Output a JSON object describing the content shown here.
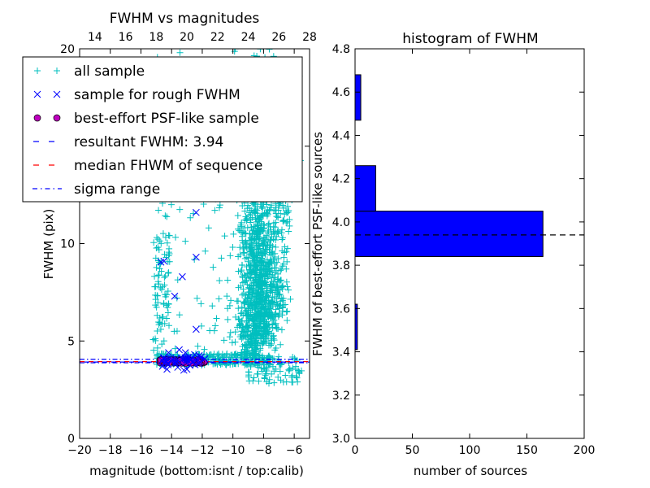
{
  "chart_data": [
    {
      "type": "scatter",
      "title": "FWHM vs magnitudes",
      "xlabel": "magnitude (bottom:isnt / top:calib)",
      "ylabel": "FWHM (pix)",
      "xlim": [
        -20,
        -5
      ],
      "ylim": [
        0,
        20
      ],
      "x_ticks": [
        -20,
        -18,
        -16,
        -14,
        -12,
        -10,
        -8,
        -6
      ],
      "x_tick_labels": [
        "−20",
        "−18",
        "−16",
        "−14",
        "−12",
        "−10",
        "−8",
        "−6"
      ],
      "y_ticks": [
        0,
        5,
        10,
        15,
        20
      ],
      "y_tick_labels": [
        "0",
        "5",
        "10",
        "15",
        "20"
      ],
      "top_xlim": [
        13,
        28
      ],
      "top_x_ticks": [
        14,
        16,
        18,
        20,
        22,
        24,
        26,
        28
      ],
      "top_x_tick_labels": [
        "14",
        "16",
        "18",
        "20",
        "22",
        "24",
        "26",
        "28"
      ],
      "legend_position": "upper-left",
      "legend": [
        {
          "label": "all sample",
          "marker": "plus",
          "color": "#00bfbf"
        },
        {
          "label": "sample for rough FWHM",
          "marker": "x",
          "color": "#0000ff"
        },
        {
          "label": "best-effort PSF-like sample",
          "marker": "circle",
          "color": "#bf00bf"
        },
        {
          "label": "resultant FWHM: 3.94",
          "marker": "dash",
          "color": "#0000ff"
        },
        {
          "label": "median FHWM of sequence",
          "marker": "dash",
          "color": "#ff0000"
        },
        {
          "label": "sigma range",
          "marker": "dashdot",
          "color": "#0000ff"
        }
      ],
      "resultant_fwhm": 3.94,
      "median_fwhm": 3.94,
      "sigma_range": [
        3.88,
        4.06
      ],
      "rough_sample": [
        {
          "x": -14.7,
          "y": 9.05
        },
        {
          "x": -14.5,
          "y": 9.1
        },
        {
          "x": -12.4,
          "y": 11.6
        },
        {
          "x": -12.4,
          "y": 9.3
        },
        {
          "x": -13.3,
          "y": 8.3
        },
        {
          "x": -13.8,
          "y": 7.3
        },
        {
          "x": -12.4,
          "y": 5.6
        },
        {
          "x": -13.1,
          "y": 4.4
        },
        {
          "x": -13.5,
          "y": 4.55
        },
        {
          "x": -14.2,
          "y": 4.4
        },
        {
          "x": -12.2,
          "y": 4.25
        },
        {
          "x": -12.5,
          "y": 4.3
        },
        {
          "x": -14.3,
          "y": 3.55
        },
        {
          "x": -13.2,
          "y": 3.5
        },
        {
          "x": -13.0,
          "y": 3.55
        },
        {
          "x": -12.8,
          "y": 3.75
        },
        {
          "x": -14.6,
          "y": 3.7
        },
        {
          "x": -13.6,
          "y": 3.65
        }
      ]
    },
    {
      "type": "bar",
      "orientation": "horizontal",
      "title": "histogram of FWHM",
      "xlabel": "number of sources",
      "ylabel": "FWHM of best-effort PSF-like sources",
      "xlim": [
        0,
        200
      ],
      "ylim": [
        3.0,
        4.8
      ],
      "x_ticks": [
        0,
        50,
        100,
        150,
        200
      ],
      "x_tick_labels": [
        "0",
        "50",
        "100",
        "150",
        "200"
      ],
      "y_ticks": [
        3.0,
        3.2,
        3.4,
        3.6,
        3.8,
        4.0,
        4.2,
        4.4,
        4.6,
        4.8
      ],
      "y_tick_labels": [
        "3.0",
        "3.2",
        "3.4",
        "3.6",
        "3.8",
        "4.0",
        "4.2",
        "4.4",
        "4.6",
        "4.8"
      ],
      "bins": [
        {
          "low": 3.41,
          "high": 3.62,
          "count": 2
        },
        {
          "low": 3.62,
          "high": 3.84,
          "count": 0
        },
        {
          "low": 3.84,
          "high": 4.05,
          "count": 164
        },
        {
          "low": 4.05,
          "high": 4.26,
          "count": 18
        },
        {
          "low": 4.26,
          "high": 4.47,
          "count": 0
        },
        {
          "low": 4.47,
          "high": 4.68,
          "count": 5
        }
      ],
      "bar_color": "#0000ff",
      "reference_line": 3.94
    }
  ]
}
